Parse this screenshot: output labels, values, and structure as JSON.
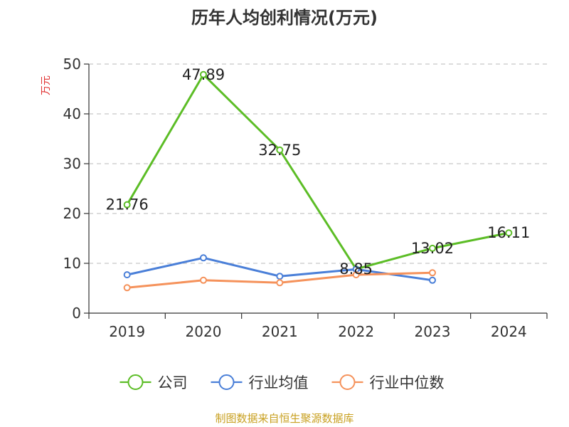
{
  "chart_data": {
    "type": "line",
    "title": "历年人均创利情况(万元)",
    "ylabel": "万元",
    "categories": [
      "2019",
      "2020",
      "2021",
      "2022",
      "2023",
      "2024"
    ],
    "ylim": [
      0,
      50
    ],
    "yticks": [
      0,
      10,
      20,
      30,
      40,
      50
    ],
    "grid": true,
    "legend_position": "bottom",
    "series": [
      {
        "name": "公司",
        "color": "#5cbd26",
        "values": [
          21.76,
          47.89,
          32.75,
          8.85,
          13.02,
          16.11
        ],
        "labels": [
          "21.76",
          "47.89",
          "32.75",
          "8.85",
          "13.02",
          "16.11"
        ]
      },
      {
        "name": "行业均值",
        "color": "#4a7fd8",
        "values": [
          7.7,
          11.1,
          7.4,
          8.8,
          6.6,
          null
        ]
      },
      {
        "name": "行业中位数",
        "color": "#f5925b",
        "values": [
          5.1,
          6.6,
          6.1,
          7.7,
          8.1,
          null
        ]
      }
    ]
  },
  "source": "制图数据来自恒生聚源数据库"
}
